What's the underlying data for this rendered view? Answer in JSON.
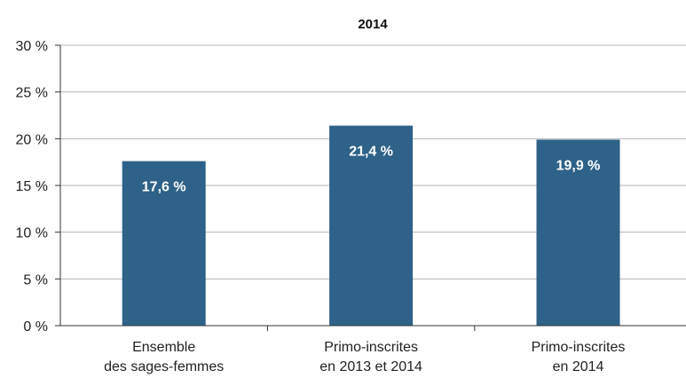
{
  "chart_data": {
    "type": "bar",
    "title": "2014",
    "categories": [
      [
        "Ensemble",
        "des sages-femmes"
      ],
      [
        "Primo-inscrites",
        "en 2013 et 2014"
      ],
      [
        "Primo-inscrites",
        "en 2014"
      ]
    ],
    "values": [
      17.6,
      21.4,
      19.9
    ],
    "value_labels": [
      "17,6 %",
      "21,4 %",
      "19,9 %"
    ],
    "ylim": [
      0,
      30
    ],
    "yticks": [
      0,
      5,
      10,
      15,
      20,
      25,
      30
    ],
    "ytick_labels": [
      "0 %",
      "5 %",
      "10 %",
      "15 %",
      "20 %",
      "25 %",
      "30 %"
    ],
    "grid": true,
    "bar_color": "#2e6288",
    "grid_color": "#b5b5b5"
  }
}
